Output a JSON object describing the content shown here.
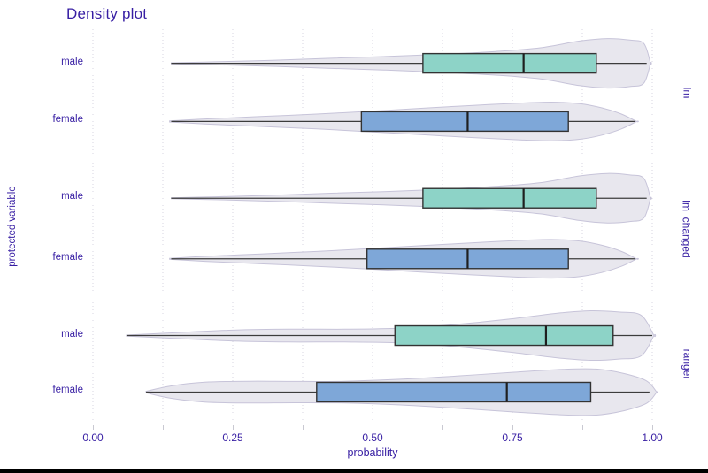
{
  "title": "Density plot",
  "axes": {
    "x_label": "probability",
    "y_label": "protected variable"
  },
  "colors": {
    "text_navy": "#371ea3",
    "male_fill": "#8dd3c7",
    "female_fill": "#7ea7d8",
    "violin_fill": "#e8e7ee",
    "violin_stroke": "#c7c4d9",
    "box_stroke": "#333333",
    "median_stroke": "#1f1f1f",
    "whisker_stroke": "#3c3c3c",
    "gridline": "#d7d6e0",
    "bottom_bar": "#000000"
  },
  "chart_data": {
    "type": "violin-box",
    "title": "Density plot",
    "xlabel": "probability",
    "ylabel": "protected variable",
    "x_range": [
      0,
      1
    ],
    "x_ticks_major": [
      0,
      0.25,
      0.5,
      0.75,
      1
    ],
    "x_tick_labels": [
      "0.00",
      "0.25",
      "0.50",
      "0.75",
      "1.00"
    ],
    "x_minor_step": 0.125,
    "grid": "vertical-dashed",
    "facets": [
      {
        "label": "lm",
        "rows": [
          {
            "group": "male",
            "fill": "male_fill",
            "box": {
              "q1": 0.59,
              "median": 0.77,
              "q3": 0.9,
              "whisker_low": 0.14,
              "whisker_high": 0.99
            },
            "violin": [
              [
                0.14,
                0.02
              ],
              [
                0.22,
                0.06
              ],
              [
                0.32,
                0.12
              ],
              [
                0.42,
                0.2
              ],
              [
                0.52,
                0.27
              ],
              [
                0.62,
                0.36
              ],
              [
                0.72,
                0.48
              ],
              [
                0.8,
                0.63
              ],
              [
                0.87,
                0.9
              ],
              [
                0.92,
                1.0
              ],
              [
                0.96,
                0.94
              ],
              [
                0.985,
                0.8
              ],
              [
                0.997,
                0.0
              ]
            ]
          },
          {
            "group": "female",
            "fill": "female_fill",
            "box": {
              "q1": 0.48,
              "median": 0.67,
              "q3": 0.85,
              "whisker_low": 0.14,
              "whisker_high": 0.97
            },
            "violin": [
              [
                0.137,
                0.02
              ],
              [
                0.2,
                0.1
              ],
              [
                0.3,
                0.2
              ],
              [
                0.4,
                0.3
              ],
              [
                0.5,
                0.42
              ],
              [
                0.6,
                0.55
              ],
              [
                0.68,
                0.65
              ],
              [
                0.76,
                0.74
              ],
              [
                0.82,
                0.78
              ],
              [
                0.87,
                0.72
              ],
              [
                0.91,
                0.55
              ],
              [
                0.945,
                0.3
              ],
              [
                0.972,
                0.0
              ]
            ]
          }
        ]
      },
      {
        "label": "lm_changed",
        "rows": [
          {
            "group": "male",
            "fill": "male_fill",
            "box": {
              "q1": 0.59,
              "median": 0.77,
              "q3": 0.9,
              "whisker_low": 0.14,
              "whisker_high": 0.99
            },
            "violin": [
              [
                0.14,
                0.02
              ],
              [
                0.22,
                0.06
              ],
              [
                0.32,
                0.12
              ],
              [
                0.42,
                0.2
              ],
              [
                0.52,
                0.27
              ],
              [
                0.62,
                0.36
              ],
              [
                0.72,
                0.48
              ],
              [
                0.8,
                0.63
              ],
              [
                0.87,
                0.9
              ],
              [
                0.92,
                1.0
              ],
              [
                0.96,
                0.94
              ],
              [
                0.985,
                0.8
              ],
              [
                0.997,
                0.0
              ]
            ]
          },
          {
            "group": "female",
            "fill": "female_fill",
            "box": {
              "q1": 0.49,
              "median": 0.67,
              "q3": 0.85,
              "whisker_low": 0.14,
              "whisker_high": 0.97
            },
            "violin": [
              [
                0.137,
                0.02
              ],
              [
                0.2,
                0.1
              ],
              [
                0.3,
                0.2
              ],
              [
                0.4,
                0.3
              ],
              [
                0.5,
                0.42
              ],
              [
                0.6,
                0.55
              ],
              [
                0.68,
                0.65
              ],
              [
                0.76,
                0.74
              ],
              [
                0.82,
                0.78
              ],
              [
                0.87,
                0.72
              ],
              [
                0.91,
                0.55
              ],
              [
                0.945,
                0.3
              ],
              [
                0.972,
                0.0
              ]
            ]
          }
        ]
      },
      {
        "label": "ranger",
        "rows": [
          {
            "group": "male",
            "fill": "male_fill",
            "box": {
              "q1": 0.54,
              "median": 0.81,
              "q3": 0.93,
              "whisker_low": 0.06,
              "whisker_high": 1.0
            },
            "violin": [
              [
                0.06,
                0.02
              ],
              [
                0.15,
                0.12
              ],
              [
                0.25,
                0.22
              ],
              [
                0.35,
                0.26
              ],
              [
                0.45,
                0.26
              ],
              [
                0.55,
                0.3
              ],
              [
                0.65,
                0.45
              ],
              [
                0.75,
                0.68
              ],
              [
                0.83,
                0.9
              ],
              [
                0.89,
                1.0
              ],
              [
                0.94,
                0.95
              ],
              [
                0.98,
                0.82
              ],
              [
                1.003,
                0.0
              ]
            ]
          },
          {
            "group": "female",
            "fill": "female_fill",
            "box": {
              "q1": 0.4,
              "median": 0.74,
              "q3": 0.89,
              "whisker_low": 0.095,
              "whisker_high": 0.995
            },
            "violin": [
              [
                0.095,
                0.03
              ],
              [
                0.14,
                0.25
              ],
              [
                0.2,
                0.4
              ],
              [
                0.28,
                0.44
              ],
              [
                0.36,
                0.43
              ],
              [
                0.45,
                0.44
              ],
              [
                0.55,
                0.52
              ],
              [
                0.65,
                0.65
              ],
              [
                0.75,
                0.8
              ],
              [
                0.84,
                0.92
              ],
              [
                0.9,
                0.93
              ],
              [
                0.95,
                0.75
              ],
              [
                0.99,
                0.45
              ],
              [
                1.008,
                0.0
              ]
            ]
          }
        ]
      }
    ]
  }
}
